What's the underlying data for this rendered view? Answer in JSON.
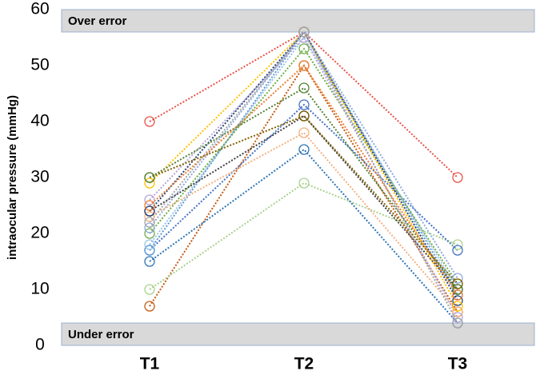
{
  "chart_data": {
    "type": "line",
    "y_label": "intraocular pressure (mmHg)",
    "categories": [
      "T1",
      "T2",
      "T3"
    ],
    "ylim": [
      0,
      60
    ],
    "yticks": [
      0,
      10,
      20,
      30,
      40,
      50,
      60
    ],
    "bands": [
      {
        "label": "Over error",
        "from": 56,
        "to": 60
      },
      {
        "label": "Under error",
        "from": 0,
        "to": 4
      }
    ],
    "series": [
      {
        "color": "#e8534a",
        "values": [
          40,
          56,
          30
        ]
      },
      {
        "color": "#c55a11",
        "values": [
          7,
          50,
          6
        ]
      },
      {
        "color": "#a9d18e",
        "values": [
          10,
          29,
          18
        ]
      },
      {
        "color": "#2e75b6",
        "values": [
          15,
          35,
          4
        ]
      },
      {
        "color": "#4472c4",
        "values": [
          17,
          43,
          17
        ]
      },
      {
        "color": "#5b9bd5",
        "values": [
          17,
          56,
          9
        ]
      },
      {
        "color": "#9dc3e6",
        "values": [
          18,
          55,
          10
        ]
      },
      {
        "color": "#70ad47",
        "values": [
          20,
          53,
          11
        ]
      },
      {
        "color": "#8faadc",
        "values": [
          21,
          56,
          12
        ]
      },
      {
        "color": "#f4b183",
        "values": [
          23,
          38,
          6
        ]
      },
      {
        "color": "#404040",
        "values": [
          24,
          41,
          10
        ]
      },
      {
        "color": "#264478",
        "values": [
          24,
          56,
          8
        ]
      },
      {
        "color": "#b4a7d6",
        "values": [
          26,
          55,
          5
        ]
      },
      {
        "color": "#ffc000",
        "values": [
          29,
          56,
          7
        ]
      },
      {
        "color": "#7f6000",
        "values": [
          30,
          41,
          11
        ]
      },
      {
        "color": "#548235",
        "values": [
          30,
          46,
          10
        ]
      },
      {
        "color": "#ed7d31",
        "values": [
          25,
          50,
          9
        ]
      },
      {
        "color": "#a5a5a5",
        "values": [
          22,
          56,
          4
        ]
      }
    ]
  }
}
